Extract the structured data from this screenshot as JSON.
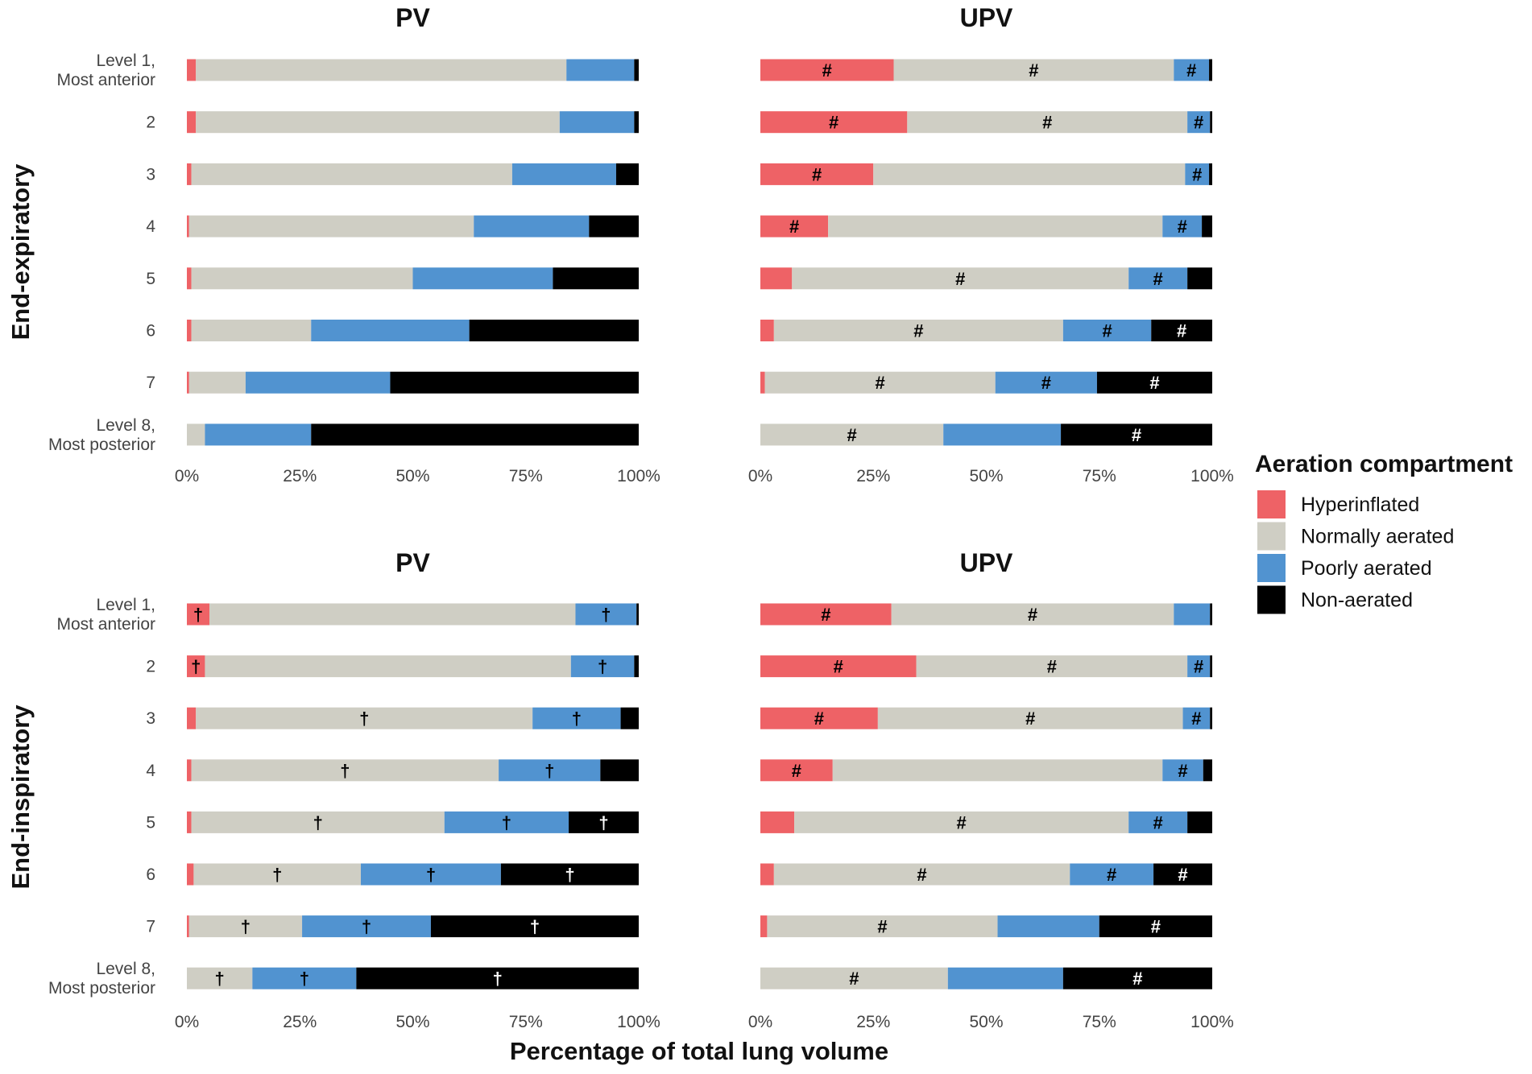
{
  "chart_data": {
    "type": "bar",
    "orientation": "horizontal",
    "stacked": true,
    "x_label": "Percentage of total lung volume",
    "x_ticks": [
      "0%",
      "25%",
      "50%",
      "75%",
      "100%"
    ],
    "xlim": [
      0,
      100
    ],
    "levels": [
      "Level 1,\nMost anterior",
      "2",
      "3",
      "4",
      "5",
      "6",
      "7",
      "Level 8,\nMost posterior"
    ],
    "legend": {
      "title": "Aeration compartment",
      "position": "right",
      "entries": [
        {
          "name": "Hyperinflated",
          "color": "#ee6266"
        },
        {
          "name": "Normally aerated",
          "color": "#cfcec4"
        },
        {
          "name": "Poorly aerated",
          "color": "#5193d0"
        },
        {
          "name": "Non-aerated",
          "color": "#000000"
        }
      ]
    },
    "row_labels": [
      "End-expiratory",
      "End-inspiratory"
    ],
    "panels": [
      {
        "row": "End-expiratory",
        "title": "PV",
        "levels": [
          {
            "values": [
              2,
              82,
              15,
              1
            ],
            "marks": [
              "",
              "",
              "",
              ""
            ]
          },
          {
            "values": [
              2,
              80.5,
              16.5,
              1
            ],
            "marks": [
              "",
              "",
              "",
              ""
            ]
          },
          {
            "values": [
              1,
              71,
              23,
              5
            ],
            "marks": [
              "",
              "",
              "",
              ""
            ]
          },
          {
            "values": [
              0.5,
              63,
              25.5,
              11
            ],
            "marks": [
              "",
              "",
              "",
              ""
            ]
          },
          {
            "values": [
              1,
              49,
              31,
              19
            ],
            "marks": [
              "",
              "",
              "",
              ""
            ]
          },
          {
            "values": [
              1,
              26.5,
              35,
              37.5
            ],
            "marks": [
              "",
              "",
              "",
              ""
            ]
          },
          {
            "values": [
              0.5,
              12.5,
              32,
              55
            ],
            "marks": [
              "",
              "",
              "",
              ""
            ]
          },
          {
            "values": [
              0,
              4,
              23.5,
              72.5
            ],
            "marks": [
              "",
              "",
              "",
              ""
            ]
          }
        ]
      },
      {
        "row": "End-expiratory",
        "title": "UPV",
        "levels": [
          {
            "values": [
              29.5,
              62,
              7.8,
              0.7
            ],
            "marks": [
              "#",
              "#",
              "#",
              ""
            ]
          },
          {
            "values": [
              32.5,
              62,
              5,
              0.5
            ],
            "marks": [
              "#",
              "#",
              "#",
              ""
            ]
          },
          {
            "values": [
              25,
              69,
              5.3,
              0.7
            ],
            "marks": [
              "#",
              "",
              "#",
              ""
            ]
          },
          {
            "values": [
              15,
              74,
              8.7,
              2.3
            ],
            "marks": [
              "#",
              "",
              "#",
              ""
            ]
          },
          {
            "values": [
              7,
              74.5,
              13,
              5.5
            ],
            "marks": [
              "",
              "#",
              "#",
              ""
            ]
          },
          {
            "values": [
              3,
              64,
              19.5,
              13.5
            ],
            "marks": [
              "",
              "#",
              "#",
              "#"
            ]
          },
          {
            "values": [
              1,
              51,
              22.5,
              25.5
            ],
            "marks": [
              "",
              "#",
              "#",
              "#"
            ]
          },
          {
            "values": [
              0,
              40.5,
              26,
              33.5
            ],
            "marks": [
              "",
              "#",
              "",
              "#"
            ]
          }
        ]
      },
      {
        "row": "End-inspiratory",
        "title": "PV",
        "levels": [
          {
            "values": [
              5,
              81,
              13.5,
              0.5
            ],
            "marks": [
              "†",
              "",
              "†",
              ""
            ]
          },
          {
            "values": [
              4,
              81,
              14,
              1
            ],
            "marks": [
              "†",
              "",
              "†",
              ""
            ]
          },
          {
            "values": [
              2,
              74.5,
              19.5,
              4
            ],
            "marks": [
              "",
              "†",
              "†",
              ""
            ]
          },
          {
            "values": [
              1,
              68,
              22.5,
              8.5
            ],
            "marks": [
              "",
              "†",
              "†",
              ""
            ]
          },
          {
            "values": [
              1,
              56,
              27.5,
              15.5
            ],
            "marks": [
              "",
              "†",
              "†",
              "†"
            ]
          },
          {
            "values": [
              1.5,
              37,
              31,
              30.5
            ],
            "marks": [
              "",
              "†",
              "†",
              "†"
            ]
          },
          {
            "values": [
              0.5,
              25,
              28.5,
              46
            ],
            "marks": [
              "",
              "†",
              "†",
              "†"
            ]
          },
          {
            "values": [
              0,
              14.5,
              23,
              62.5
            ],
            "marks": [
              "",
              "†",
              "†",
              "†"
            ]
          }
        ]
      },
      {
        "row": "End-inspiratory",
        "title": "UPV",
        "levels": [
          {
            "values": [
              29,
              62.5,
              8,
              0.5
            ],
            "marks": [
              "#",
              "#",
              "",
              ""
            ]
          },
          {
            "values": [
              34.5,
              60,
              5,
              0.5
            ],
            "marks": [
              "#",
              "#",
              "#",
              ""
            ]
          },
          {
            "values": [
              26,
              67.5,
              6,
              0.5
            ],
            "marks": [
              "#",
              "#",
              "#",
              ""
            ]
          },
          {
            "values": [
              16,
              73,
              9,
              2
            ],
            "marks": [
              "#",
              "",
              "#",
              ""
            ]
          },
          {
            "values": [
              7.5,
              74,
              13,
              5.5
            ],
            "marks": [
              "",
              "#",
              "#",
              ""
            ]
          },
          {
            "values": [
              3,
              65.5,
              18.5,
              13
            ],
            "marks": [
              "",
              "#",
              "#",
              "#"
            ]
          },
          {
            "values": [
              1.5,
              51,
              22.5,
              25
            ],
            "marks": [
              "",
              "#",
              "",
              "#"
            ]
          },
          {
            "values": [
              0,
              41.5,
              25.5,
              33
            ],
            "marks": [
              "",
              "#",
              "",
              "#"
            ]
          }
        ]
      }
    ]
  }
}
